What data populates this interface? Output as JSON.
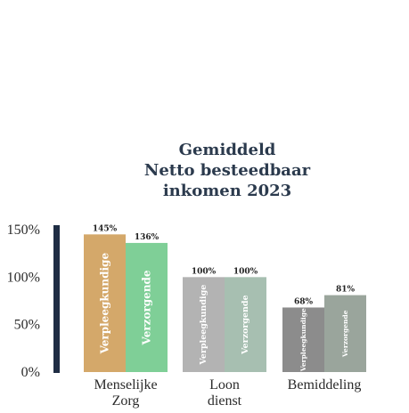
{
  "chart_data": {
    "type": "bar",
    "title_lines": [
      "Gemiddeld",
      "Netto besteedbaar",
      "inkomen 2023"
    ],
    "yticks": [
      "0%",
      "50%",
      "100%",
      "150%"
    ],
    "ylim": [
      0,
      150
    ],
    "grid": false,
    "categories": [
      {
        "lines": [
          "Menselijke",
          "Zorg"
        ]
      },
      {
        "lines": [
          "Loon",
          "dienst"
        ]
      },
      {
        "lines": [
          "Bemiddeling"
        ]
      }
    ],
    "series": [
      {
        "name": "Verpleegkundige",
        "values": [
          145,
          100,
          68
        ],
        "labels": [
          "145%",
          "100%",
          "68%"
        ]
      },
      {
        "name": "Verzorgende",
        "values": [
          136,
          100,
          81
        ],
        "labels": [
          "136%",
          "100%",
          "81%"
        ]
      }
    ],
    "colors": [
      [
        "#d4a86a",
        "#7fcf97"
      ],
      [
        "#b3b3b3",
        "#a7bfb1"
      ],
      [
        "#8c8c8c",
        "#9aa59c"
      ]
    ],
    "axis_bar_color": "#1f2d44"
  }
}
